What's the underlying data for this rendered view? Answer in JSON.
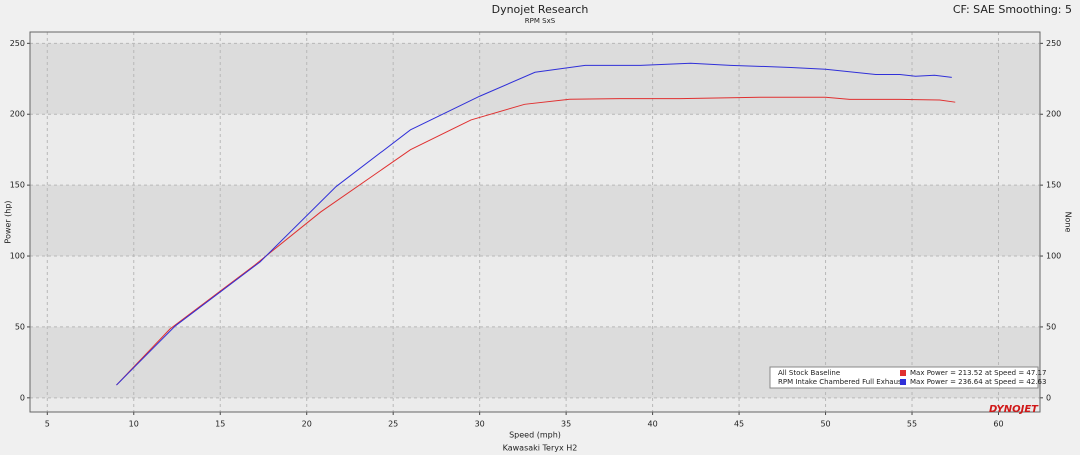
{
  "chart_data": {
    "type": "line",
    "title": "Dynojet Research",
    "subtitle": "RPM SxS",
    "header_right": "CF: SAE Smoothing: 5",
    "x_label": "Speed (mph)",
    "y_label": "Power (hp)",
    "y2_label": "None",
    "footer": "Kawasaki Teryx H2",
    "logo": "DYNOJET",
    "xlim": [
      4,
      62.4
    ],
    "xticks": [
      5,
      10,
      15,
      20,
      25,
      30,
      35,
      40,
      45,
      50,
      55,
      60
    ],
    "ylim": [
      -10,
      258
    ],
    "yticks": [
      0,
      50,
      100,
      150,
      200,
      250
    ],
    "y2lim": [
      -10,
      258
    ],
    "y2ticks": [
      0,
      50,
      100,
      150,
      200,
      250
    ],
    "grid": true,
    "series": [
      {
        "name": "All Stock Baseline",
        "color": "#e03030",
        "stat": "Max Power = 213.52 at Speed = 47.17",
        "x": [
          9,
          12.1,
          17,
          20.8,
          26,
          29.5,
          32.6,
          35.2,
          38.1,
          41.6,
          46.2,
          50,
          51.4,
          54.3,
          56.6,
          57.5
        ],
        "values": [
          9,
          48.6,
          93.7,
          131,
          175,
          196,
          207,
          210.6,
          211,
          211,
          212,
          212,
          210.5,
          210.5,
          210,
          208.5
        ]
      },
      {
        "name": "RPM Intake Chambered Full Exhaust",
        "color": "#3030d8",
        "stat": "Max Power = 236.64 at Speed = 42.63",
        "x": [
          9,
          12.4,
          17.3,
          21.7,
          26,
          30,
          33.2,
          36.1,
          39.3,
          42.2,
          44.5,
          48,
          50,
          52.9,
          54.3,
          55.2,
          56.3,
          57.3
        ],
        "values": [
          9,
          50.7,
          95.8,
          149,
          189,
          212.7,
          229.6,
          234.5,
          234.5,
          236,
          234.5,
          233,
          231.7,
          228,
          228,
          226.8,
          227.5,
          226
        ]
      }
    ]
  }
}
